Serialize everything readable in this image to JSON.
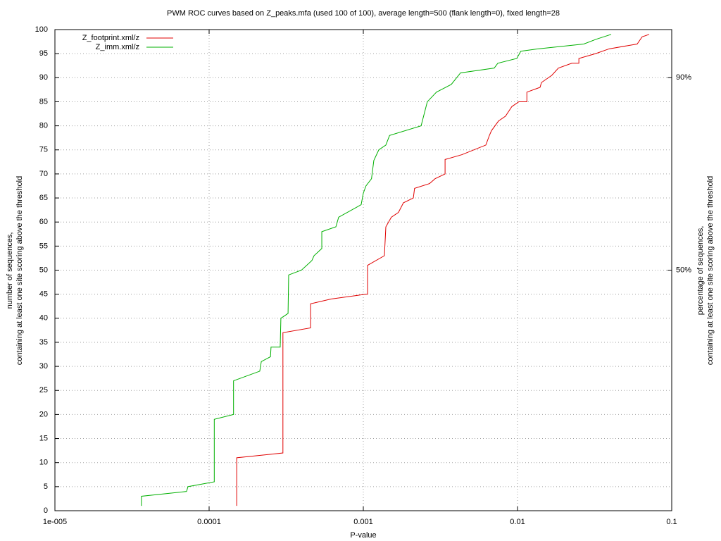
{
  "chart_data": {
    "type": "line",
    "title": "PWM ROC curves based on Z_peaks.mfa (used 100 of 100), average length=500 (flank length=0), fixed length=28",
    "xlabel": "P-value",
    "ylabel": [
      "number of sequences,",
      "containing at least one site scoring above the threshold"
    ],
    "y2label": [
      "percentage of sequences,",
      "containing at least one site scoring above the threshold"
    ],
    "xscale": "log",
    "xlim": [
      1e-05,
      0.1
    ],
    "xticks": [
      {
        "value": 1e-05,
        "label": "1e-005"
      },
      0.0001,
      0.001,
      0.01,
      0.1
    ],
    "ylim": [
      0,
      100
    ],
    "yticks": [
      0,
      5,
      10,
      15,
      20,
      25,
      30,
      35,
      40,
      45,
      50,
      55,
      60,
      65,
      70,
      75,
      80,
      85,
      90,
      95,
      100
    ],
    "y2lim": [
      0,
      100
    ],
    "y2ticks": [
      {
        "value": 50,
        "label": "50%"
      },
      {
        "value": 90,
        "label": "90%"
      }
    ],
    "grid": true,
    "legend": "top left",
    "series": [
      {
        "name": "Z_footprint.xml/z",
        "color": "#e00000",
        "x": [
          0.000151,
          0.000151,
          0.000301,
          0.000301,
          0.000455,
          0.000455,
          0.000617,
          0.00104,
          0.001065,
          0.001065,
          0.00137,
          0.0014,
          0.00152,
          0.00169,
          0.00182,
          0.00211,
          0.00215,
          0.00269,
          0.00292,
          0.00339,
          0.00339,
          0.00436,
          0.00623,
          0.00657,
          0.00678,
          0.00753,
          0.00836,
          0.00919,
          0.0102,
          0.0115,
          0.0115,
          0.014,
          0.0143,
          0.0167,
          0.0184,
          0.0225,
          0.025,
          0.025,
          0.0321,
          0.0393,
          0.0597,
          0.0643,
          0.0714
        ],
        "values": [
          1,
          11,
          12,
          37,
          38,
          43,
          44,
          45,
          45,
          51,
          53,
          59,
          61,
          62,
          64,
          65,
          67,
          68,
          69,
          70,
          73,
          74,
          76,
          78,
          79,
          81,
          82,
          84,
          85,
          85,
          87,
          88,
          89,
          90.5,
          92,
          93,
          93,
          94,
          95,
          96,
          97,
          98.5,
          99
        ]
      },
      {
        "name": "Z_imm.xml/z",
        "color": "#00b000",
        "x": [
          3.64e-05,
          3.64e-05,
          7.14e-05,
          7.29e-05,
          0.000108,
          0.000108,
          0.000144,
          0.000144,
          0.000213,
          0.000218,
          0.00025,
          0.000252,
          0.000289,
          0.000292,
          0.000325,
          0.000328,
          0.000397,
          0.000464,
          0.000479,
          0.000538,
          0.000538,
          0.000664,
          0.000692,
          0.000968,
          0.001,
          0.00104,
          0.00113,
          0.00117,
          0.00126,
          0.0014,
          0.00148,
          0.00237,
          0.0026,
          0.00298,
          0.00372,
          0.00427,
          0.00706,
          0.00745,
          0.00989,
          0.0105,
          0.0136,
          0.0269,
          0.0324,
          0.0405
        ],
        "values": [
          1,
          3,
          4,
          5,
          6,
          19,
          20,
          27,
          29,
          31,
          32,
          34,
          34,
          40,
          41,
          49,
          50,
          52,
          53,
          54.5,
          58,
          59,
          61,
          63.6,
          66,
          67.5,
          69,
          72.8,
          75,
          76,
          78,
          80,
          85,
          87,
          88.6,
          91,
          92,
          93,
          94,
          95.5,
          96,
          97,
          98,
          99
        ]
      }
    ]
  }
}
